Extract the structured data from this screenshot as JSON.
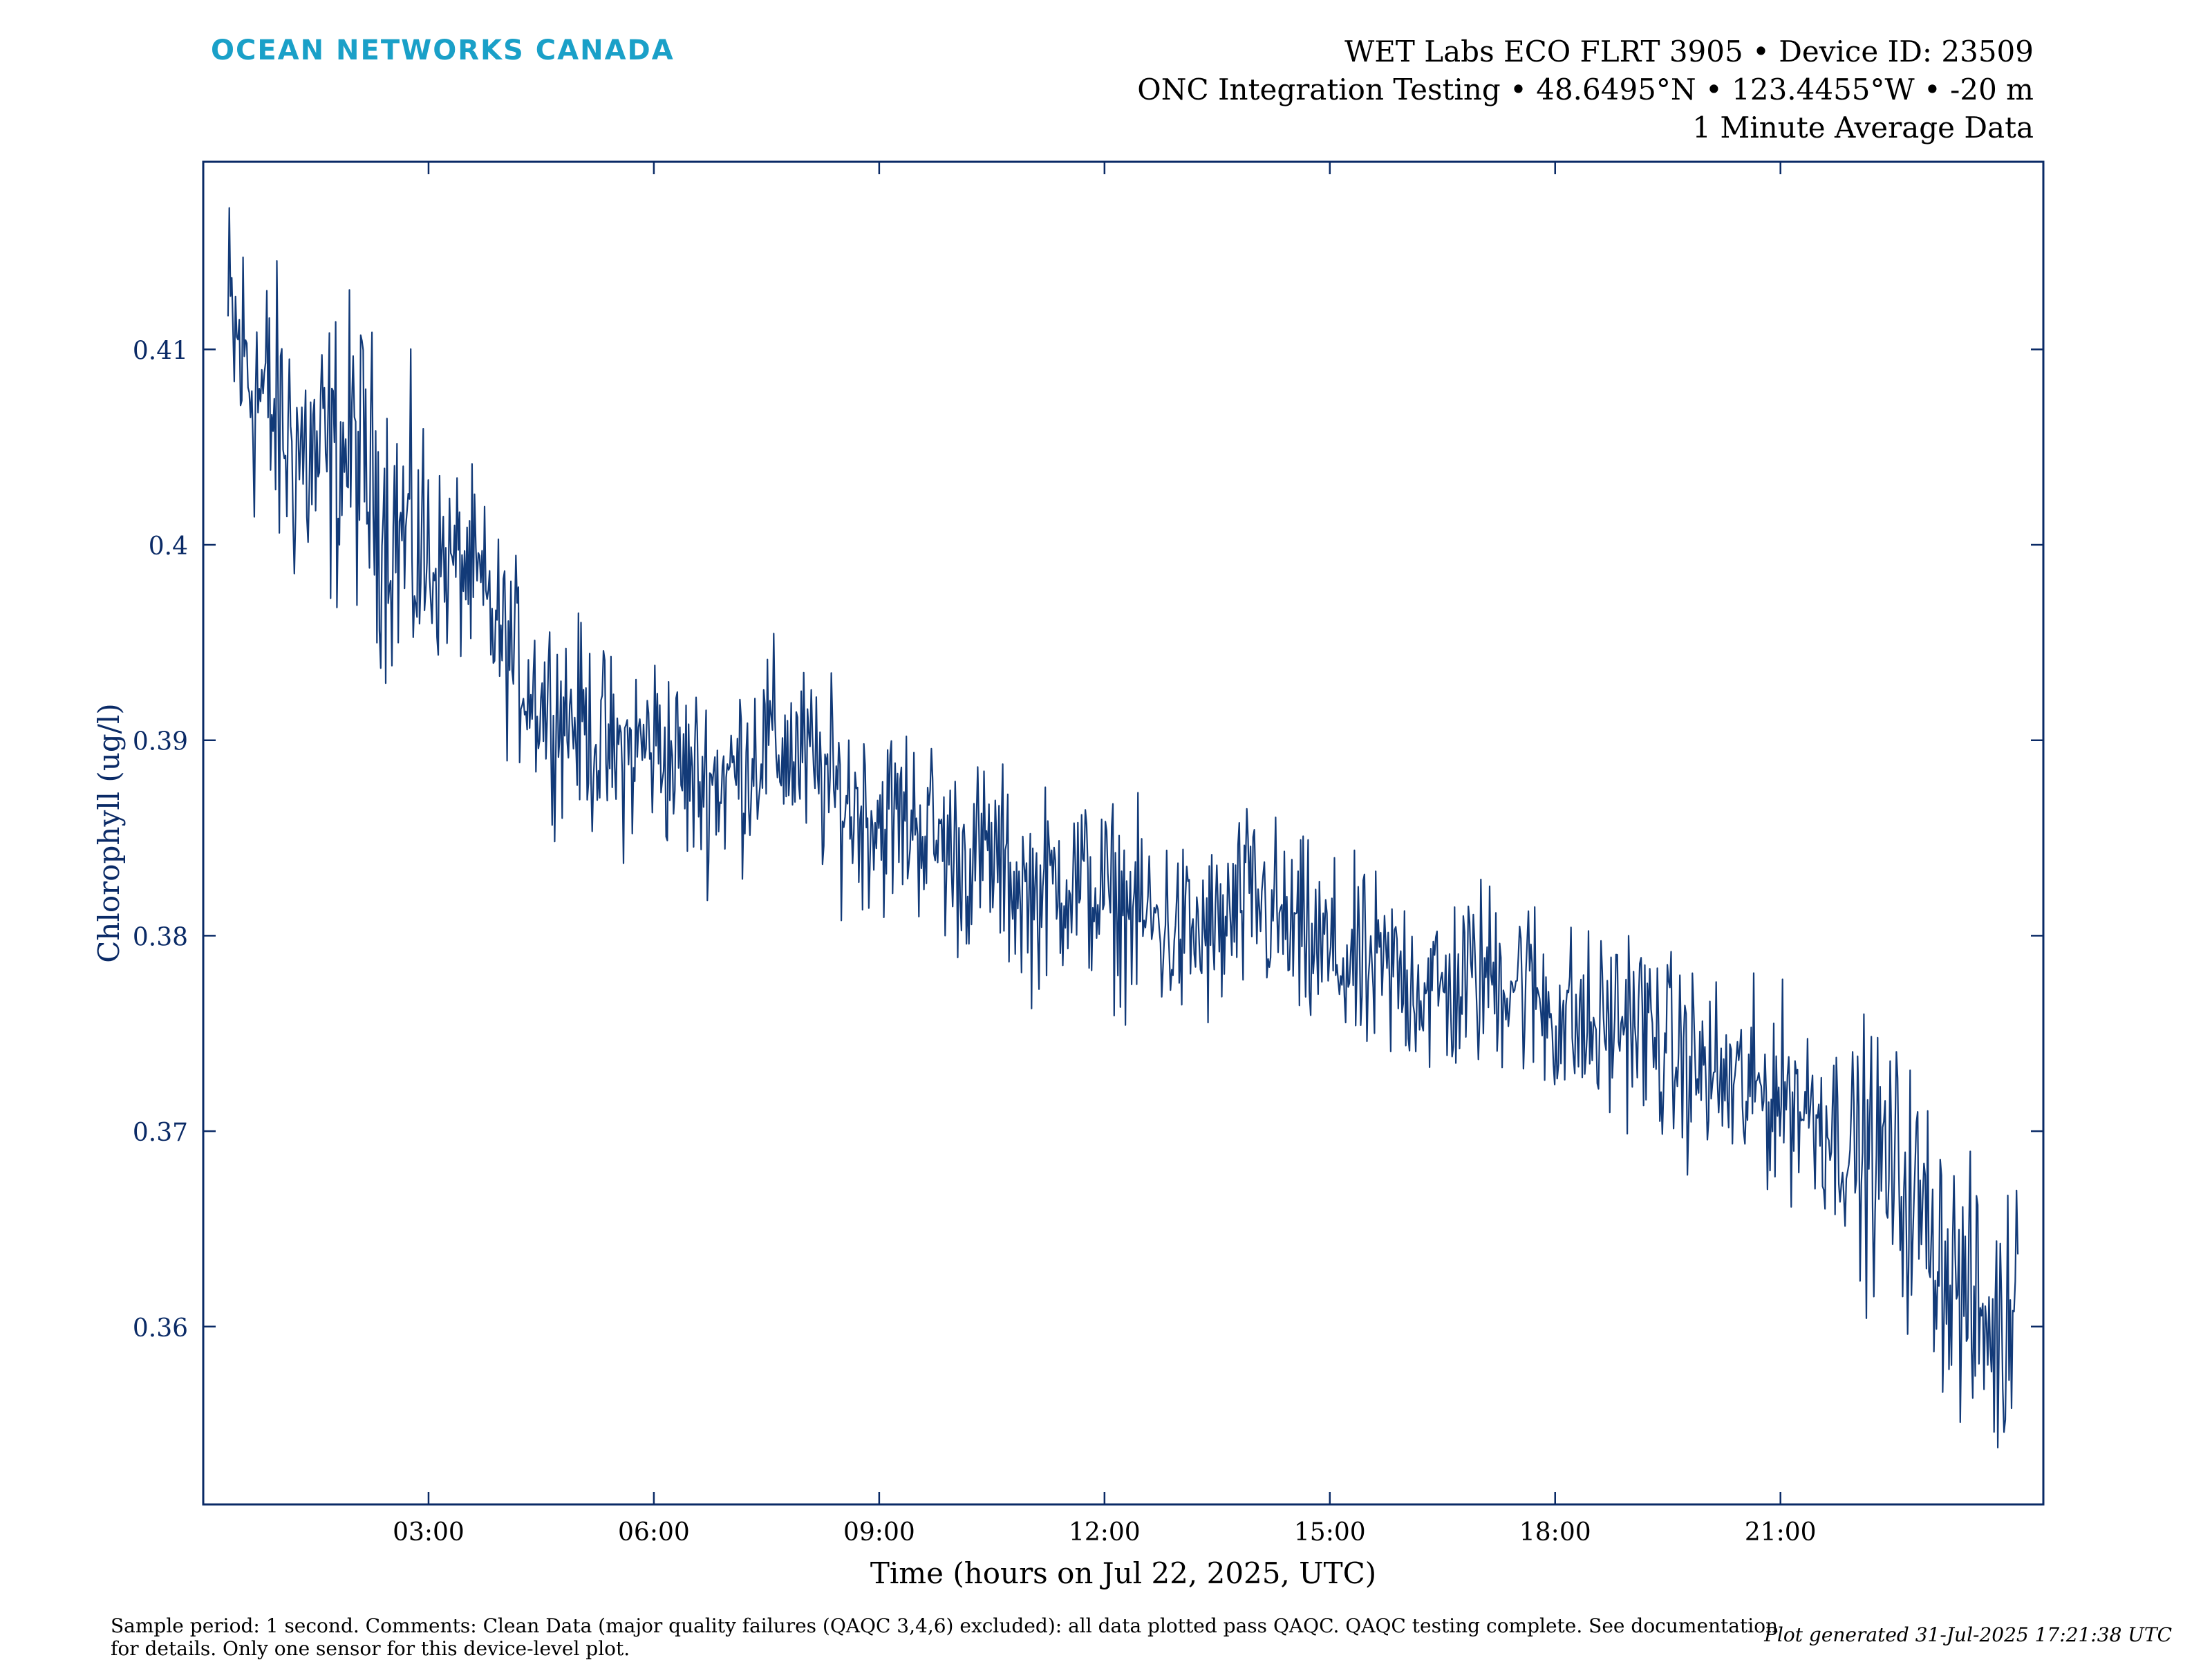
{
  "header": {
    "brand": "OCEAN NETWORKS CANADA",
    "line1": "WET Labs ECO FLRT 3905 • Device ID: 23509",
    "line2": "ONC Integration Testing • 48.6495°N • 123.4455°W • -20 m",
    "line3": "1 Minute Average Data"
  },
  "footer": {
    "comments": "Sample period: 1 second. Comments: Clean Data (major quality failures (QAQC 3,4,6) excluded): all data plotted pass QAQC. QAQC testing complete. See documentation for details. Only one sensor for this device-level plot.",
    "generated": "Plot generated 31-Jul-2025 17:21:38 UTC"
  },
  "colors": {
    "series": "#123a78",
    "axis": "#0a2a66",
    "brand": "#1aa0c8"
  },
  "chart_data": {
    "type": "line",
    "title": "",
    "xlabel": "Time (hours on Jul 22, 2025, UTC)",
    "ylabel": "Chlorophyll (ug/l)",
    "xlim": [
      0,
      24.5
    ],
    "ylim": [
      0.3509,
      0.4196
    ],
    "x_unit": "hours on Jul 22, 2025 (UTC)",
    "x_ticks": [
      3,
      6,
      9,
      12,
      15,
      18,
      21
    ],
    "x_tick_labels": [
      "03:00",
      "06:00",
      "09:00",
      "12:00",
      "15:00",
      "18:00",
      "21:00"
    ],
    "y_ticks": [
      0.36,
      0.37,
      0.38,
      0.39,
      0.4,
      0.41
    ],
    "y_tick_labels": [
      "0.36",
      "0.37",
      "0.38",
      "0.39",
      "0.4",
      "0.41"
    ],
    "grid": false,
    "series": [
      {
        "x": [
          0.33,
          1.0,
          1.5,
          2.0,
          2.5,
          3.0,
          3.5,
          4.0,
          4.5,
          5.0,
          5.5,
          6.0,
          6.5,
          7.0,
          7.5,
          8.0,
          8.5,
          9.0,
          9.5,
          10.0,
          10.5,
          11.0,
          11.5,
          12.0,
          12.5,
          13.0,
          13.5,
          14.0,
          14.5,
          15.0,
          15.5,
          16.0,
          16.5,
          17.0,
          17.5,
          18.0,
          18.5,
          19.0,
          19.5,
          20.0,
          20.5,
          21.0,
          21.5,
          22.0,
          22.5,
          23.0,
          23.5,
          24.0,
          24.16
        ],
        "y": [
          0.411,
          0.406,
          0.404,
          0.405,
          0.401,
          0.399,
          0.399,
          0.395,
          0.392,
          0.391,
          0.389,
          0.39,
          0.388,
          0.388,
          0.39,
          0.389,
          0.387,
          0.386,
          0.386,
          0.384,
          0.384,
          0.382,
          0.383,
          0.382,
          0.381,
          0.38,
          0.38,
          0.382,
          0.38,
          0.379,
          0.378,
          0.378,
          0.377,
          0.378,
          0.378,
          0.376,
          0.375,
          0.376,
          0.374,
          0.373,
          0.372,
          0.372,
          0.371,
          0.369,
          0.368,
          0.365,
          0.361,
          0.359,
          0.365
        ]
      }
    ]
  }
}
